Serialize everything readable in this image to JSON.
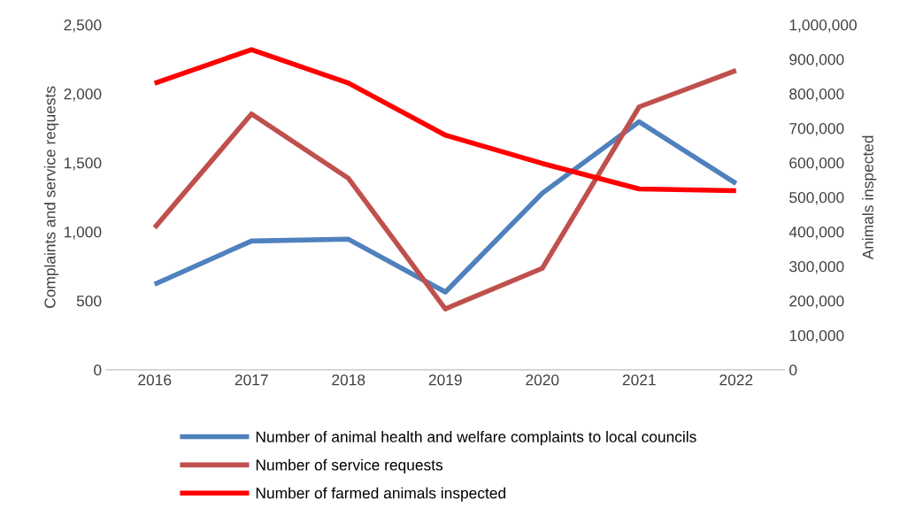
{
  "chart_data": {
    "type": "line",
    "categories": [
      "2016",
      "2017",
      "2018",
      "2019",
      "2020",
      "2021",
      "2022"
    ],
    "ylabel": "Complaints and service requests",
    "y2label": "Animals inspected",
    "ylim": [
      0,
      2500
    ],
    "yticks": [
      0,
      {
        "value": 500,
        "label": "500"
      },
      {
        "value": 1000,
        "label": "1,000"
      },
      {
        "value": 1500,
        "label": "1,500"
      },
      {
        "value": 2000,
        "label": "2,000"
      },
      {
        "value": 2500,
        "label": "2,500"
      }
    ],
    "y2lim": [
      0,
      1000000
    ],
    "y2ticks": [
      0,
      {
        "value": 100000,
        "label": "100,000"
      },
      {
        "value": 200000,
        "label": "200,000"
      },
      {
        "value": 300000,
        "label": "300,000"
      },
      {
        "value": 400000,
        "label": "400,000"
      },
      {
        "value": 500000,
        "label": "500,000"
      },
      {
        "value": 600000,
        "label": "600,000"
      },
      {
        "value": 700000,
        "label": "700,000"
      },
      {
        "value": 800000,
        "label": "800,000"
      },
      {
        "value": 900000,
        "label": "900,000"
      },
      {
        "value": 1000000,
        "label": "1,000,000"
      }
    ],
    "grid": false,
    "legend": "bottom",
    "marker": "none",
    "line_style": "solid",
    "series": [
      {
        "name": "Number of animal health and welfare complaints to local councils",
        "color": "#4f81bd",
        "values": [
          620,
          933,
          946,
          563,
          1279,
          1797,
          1349
        ]
      },
      {
        "name": "Number of service requests",
        "color": "#c0504d",
        "values": [
          1029,
          1854,
          1387,
          441,
          735,
          1905,
          2168
        ]
      },
      {
        "name": "Number of farmed animals inspected",
        "color": "#ff0000",
        "axis": "y2",
        "values": [
          830000,
          928000,
          831000,
          680000,
          598000,
          524000,
          519000
        ]
      }
    ]
  }
}
